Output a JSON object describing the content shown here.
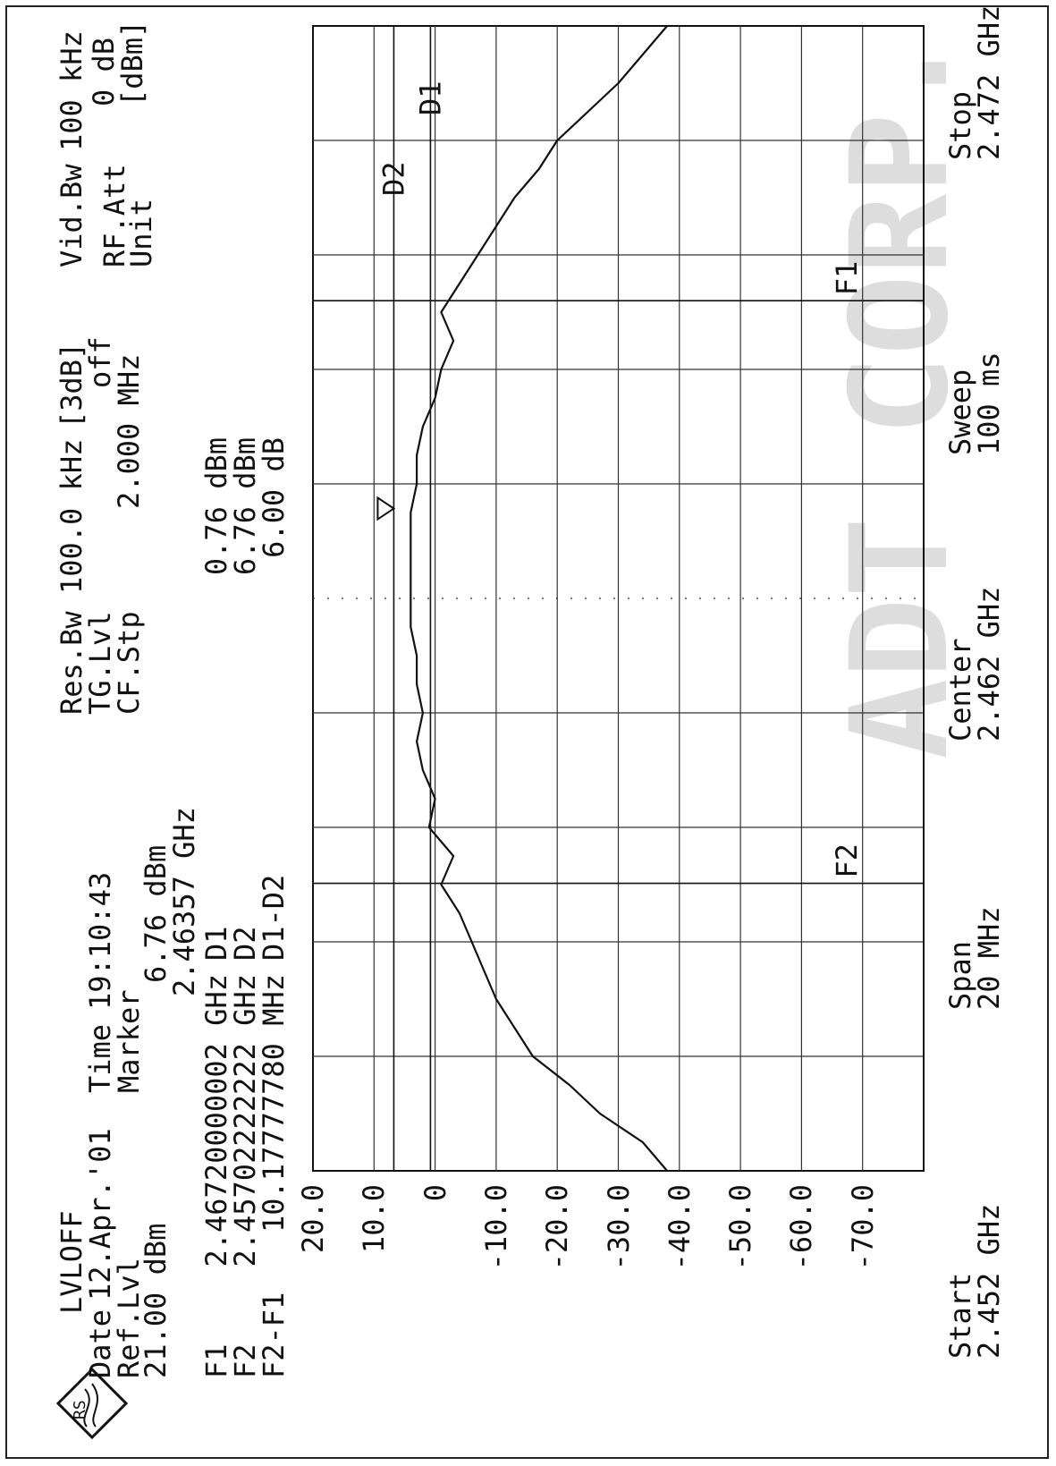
{
  "header": {
    "logo_text": "RS",
    "line1": "LVLOFF",
    "date_label": "Date",
    "date": "12.Apr.'01",
    "time_label": "Time",
    "time": "19:10:43",
    "ref_label": "Ref.Lvl",
    "ref_value": "21.00 dBm",
    "marker_label": "Marker",
    "marker_level": "6.76 dBm",
    "marker_freq": "2.46357 GHz",
    "resbw_label": "Res.Bw",
    "resbw_value": "100.0 kHz",
    "resbw_suffix": "[3dB]",
    "vidbw_label": "Vid.Bw",
    "vidbw_value": "100 kHz",
    "tglvl_label": "TG.Lvl",
    "tglvl_value": "off",
    "rfatt_label": "RF.Att",
    "rfatt_value": "0 dB",
    "cfstp_label": "CF.Stp",
    "cfstp_value": "2.000 MHz",
    "unit_label": "Unit",
    "unit_value": "[dBm]"
  },
  "markers_table": {
    "rows": [
      {
        "label": "F1",
        "value": "2.46720000002 GHz",
        "dlabel": "D1",
        "dvalue": "0.76 dBm"
      },
      {
        "label": "F2",
        "value": "2.45702222222 GHz",
        "dlabel": "D2",
        "dvalue": "6.76 dBm"
      },
      {
        "label": "F2-F1",
        "value": "10.17777780 MHz",
        "dlabel": "D1-D2",
        "dvalue": "6.00 dB"
      }
    ]
  },
  "footer": {
    "start_label": "Start",
    "start_value": "2.452 GHz",
    "span_label": "Span",
    "span_value": "20 MHz",
    "center_label": "Center",
    "center_value": "2.462 GHz",
    "sweep_label": "Sweep",
    "sweep_value": "100 ms",
    "stop_label": "Stop",
    "stop_value": "2.472 GHz"
  },
  "watermark": "ADT CORP.",
  "chart_data": {
    "type": "line",
    "xlabel": "",
    "ylabel": "",
    "xlim": [
      2.452,
      2.472
    ],
    "ylim": [
      -80,
      20
    ],
    "y_ticks": [
      "20.0",
      "10.0",
      "0",
      "-10.0",
      "-20.0",
      "-30.0",
      "-40.0",
      "-50.0",
      "-60.0",
      "-70.0"
    ],
    "grid": true,
    "color": "#111111",
    "lines": [
      {
        "label": "D1",
        "y": 0.76
      },
      {
        "label": "D2",
        "y": 6.76
      }
    ],
    "vlines": [
      {
        "label": "F1",
        "x": 2.4672
      },
      {
        "label": "F2",
        "x": 2.457022
      }
    ],
    "center_x": 2.462,
    "marker_point": {
      "x": 2.46357,
      "y": 6.76
    },
    "series": [
      {
        "x": [
          2.452,
          2.4525,
          2.453,
          2.4535,
          2.454,
          2.4545,
          2.455,
          2.4555,
          2.456,
          2.4565,
          2.457,
          2.4575,
          2.458,
          2.4585,
          2.459,
          2.4595,
          2.46,
          2.4605,
          2.461,
          2.4615,
          2.462,
          2.4625,
          2.463,
          2.4635,
          2.464,
          2.4645,
          2.465,
          2.4655,
          2.466,
          2.4665,
          2.467,
          2.4675,
          2.468,
          2.4685,
          2.469,
          2.4695,
          2.47,
          2.4705,
          2.471,
          2.4715,
          2.472
        ],
        "y": [
          -38,
          -34,
          -27,
          -22,
          -16,
          -13,
          -10,
          -8,
          -6,
          -4,
          -1,
          -3,
          1,
          0,
          2,
          3,
          2,
          3,
          3,
          4,
          4,
          4,
          4,
          4,
          3,
          3,
          2,
          0,
          -1,
          -3,
          -1,
          -4,
          -7,
          -10,
          -13,
          -17,
          -20,
          -25,
          -30,
          -34,
          -38
        ]
      }
    ]
  }
}
